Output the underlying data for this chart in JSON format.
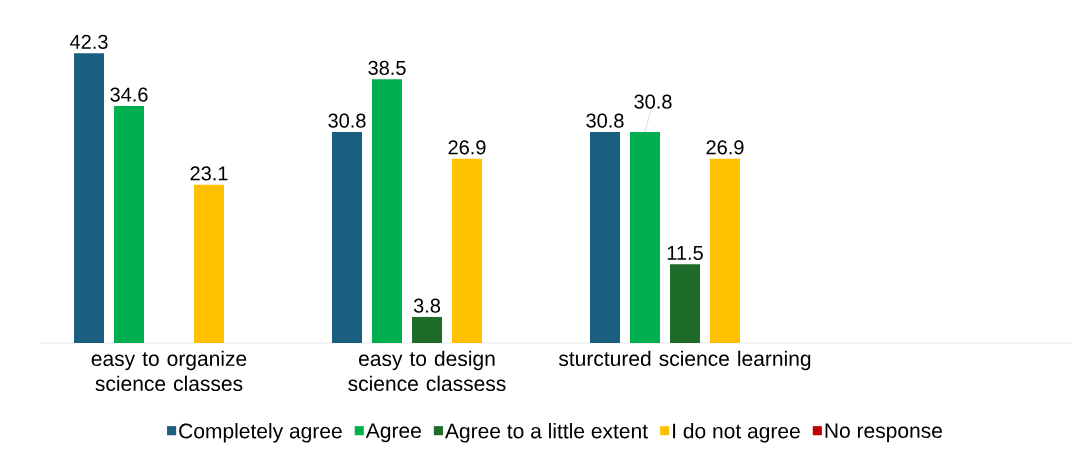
{
  "chart_data": {
    "type": "bar",
    "categories": [
      "easy to organize science classes",
      "easy to design science classess",
      "sturctured science learning",
      null
    ],
    "series": [
      {
        "name": "Completely agree",
        "color": "#1a5f80",
        "values": [
          42.3,
          30.8,
          30.8,
          null
        ]
      },
      {
        "name": "Agree",
        "color": "#00b050",
        "values": [
          34.6,
          38.5,
          30.8,
          null
        ]
      },
      {
        "name": "Agree to a little extent",
        "color": "#1e6b2a",
        "values": [
          null,
          3.8,
          11.5,
          null
        ]
      },
      {
        "name": "I do not agree",
        "color": "#ffc000",
        "values": [
          23.1,
          26.9,
          26.9,
          null
        ]
      },
      {
        "name": "No response",
        "color": "#c00000",
        "values": [
          null,
          null,
          null,
          null
        ]
      }
    ],
    "data_labels": true,
    "legend": "bottom"
  }
}
